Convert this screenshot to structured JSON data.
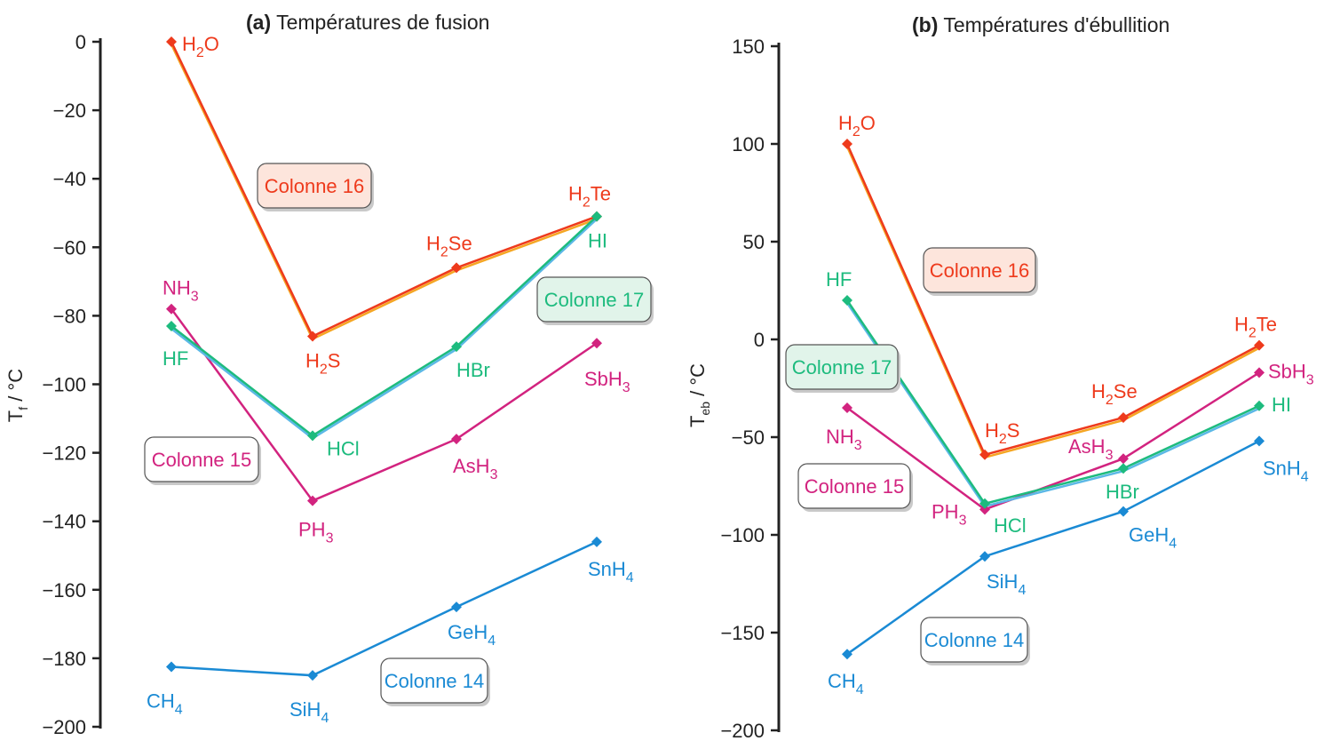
{
  "colors": {
    "col14": "#1a8ad4",
    "col15": "#d2237f",
    "col16": "#ee3a1c",
    "col16_alt": "#f5a623",
    "col17": "#1dbb7e",
    "col17_alt": "#5bb8e6"
  },
  "chart_data": [
    {
      "type": "line",
      "title_bold": "(a)",
      "title": "Températures de fusion",
      "ylabel": "T",
      "ylabel_sub": "f",
      "ylabel_unit": " / °C",
      "ylim": [
        -200,
        0
      ],
      "yticks": [
        0,
        -20,
        -40,
        -60,
        -80,
        -100,
        -120,
        -140,
        -160,
        -180,
        -200
      ],
      "ytick_labels": [
        "0",
        "−20",
        "−40",
        "−60",
        "−80",
        "−100",
        "−120",
        "−140",
        "−160",
        "−180",
        "−200"
      ],
      "series": [
        {
          "name": "Colonne 14",
          "color_key": "col14",
          "values": [
            -182.5,
            -185,
            -165,
            -146
          ],
          "labels": [
            {
              "t": "CH",
              "s": "4"
            },
            {
              "t": "SiH",
              "s": "4"
            },
            {
              "t": "GeH",
              "s": "4"
            },
            {
              "t": "SnH",
              "s": "4"
            }
          ]
        },
        {
          "name": "Colonne 15",
          "color_key": "col15",
          "values": [
            -78,
            -134,
            -116,
            -88
          ],
          "labels": [
            {
              "t": "NH",
              "s": "3"
            },
            {
              "t": "PH",
              "s": "3"
            },
            {
              "t": "AsH",
              "s": "3"
            },
            {
              "t": "SbH",
              "s": "3"
            }
          ]
        },
        {
          "name": "Colonne 16",
          "color_key": "col16",
          "shadow_key": "col16_alt",
          "values": [
            0,
            -86,
            -66,
            -51
          ],
          "labels": [
            {
              "t": "H",
              "s": "2",
              "t2": "O"
            },
            {
              "t": "H",
              "s": "2",
              "t2": "S"
            },
            {
              "t": "H",
              "s": "2",
              "t2": "Se"
            },
            {
              "t": "H",
              "s": "2",
              "t2": "Te"
            }
          ]
        },
        {
          "name": "Colonne 17",
          "color_key": "col17",
          "shadow_key": "col17_alt",
          "values": [
            -83,
            -115,
            -89,
            -51
          ],
          "labels": [
            {
              "t": "HF"
            },
            {
              "t": "HCl"
            },
            {
              "t": "HBr"
            },
            {
              "t": "HI"
            }
          ]
        }
      ],
      "boxes": [
        "Colonne 16",
        "Colonne 17",
        "Colonne 15",
        "Colonne 14"
      ]
    },
    {
      "type": "line",
      "title_bold": "(b)",
      "title": "Températures d'ébullition",
      "ylabel": "T",
      "ylabel_sub": "eb",
      "ylabel_unit": " / °C",
      "ylim": [
        -200,
        150
      ],
      "yticks": [
        150,
        100,
        50,
        0,
        -50,
        -100,
        -150,
        -200
      ],
      "ytick_labels": [
        "150",
        "100",
        "50",
        "0",
        "−50",
        "−100",
        "−150",
        "−200"
      ],
      "series": [
        {
          "name": "Colonne 14",
          "color_key": "col14",
          "values": [
            -161,
            -111,
            -88,
            -52
          ],
          "labels": [
            {
              "t": "CH",
              "s": "4"
            },
            {
              "t": "SiH",
              "s": "4"
            },
            {
              "t": "GeH",
              "s": "4"
            },
            {
              "t": "SnH",
              "s": "4"
            }
          ]
        },
        {
          "name": "Colonne 15",
          "color_key": "col15",
          "values": [
            -35,
            -87,
            -61,
            -17
          ],
          "labels": [
            {
              "t": "NH",
              "s": "3"
            },
            {
              "t": "PH",
              "s": "3"
            },
            {
              "t": "AsH",
              "s": "3"
            },
            {
              "t": "SbH",
              "s": "3"
            }
          ]
        },
        {
          "name": "Colonne 16",
          "color_key": "col16",
          "shadow_key": "col16_alt",
          "values": [
            100,
            -59,
            -40,
            -3
          ],
          "labels": [
            {
              "t": "H",
              "s": "2",
              "t2": "O"
            },
            {
              "t": "H",
              "s": "2",
              "t2": "S"
            },
            {
              "t": "H",
              "s": "2",
              "t2": "Se"
            },
            {
              "t": "H",
              "s": "2",
              "t2": "Te"
            }
          ]
        },
        {
          "name": "Colonne 17",
          "color_key": "col17",
          "shadow_key": "col17_alt",
          "values": [
            20,
            -84,
            -66,
            -34
          ],
          "labels": [
            {
              "t": "HF"
            },
            {
              "t": "HCl"
            },
            {
              "t": "HBr"
            },
            {
              "t": "HI"
            }
          ]
        }
      ],
      "boxes": [
        "Colonne 16",
        "Colonne 17",
        "Colonne 15",
        "Colonne 14"
      ]
    }
  ]
}
